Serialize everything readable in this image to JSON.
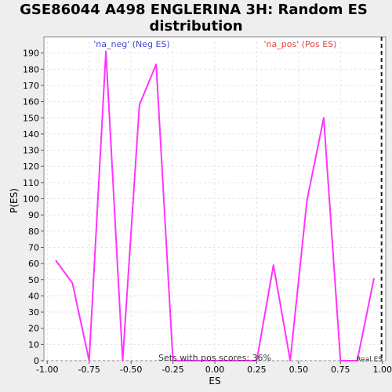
{
  "chart_data": {
    "type": "line",
    "title_line1": "GSE86044 A498 ENGLERINA 3H: Random ES",
    "title_line2": "distribution",
    "xlabel": "ES",
    "ylabel": "P(ES)",
    "xlim": [
      -1.02,
      1.02
    ],
    "ylim": [
      0,
      200
    ],
    "x_ticks": [
      -1.0,
      -0.75,
      -0.5,
      -0.25,
      0.0,
      0.25,
      0.5,
      0.75,
      1.0
    ],
    "x_tick_labels": [
      "-1.00",
      "-0.75",
      "-0.50",
      "-0.25",
      "0.00",
      "0.25",
      "0.50",
      "0.75",
      "1.00"
    ],
    "y_ticks": [
      0,
      10,
      20,
      30,
      40,
      50,
      60,
      70,
      80,
      90,
      100,
      110,
      120,
      130,
      140,
      150,
      160,
      170,
      180,
      190
    ],
    "grid": true,
    "series": [
      {
        "color": "#ff33ff",
        "x": [
          -0.95,
          -0.85,
          -0.75,
          -0.65,
          -0.55,
          -0.45,
          -0.35,
          -0.25,
          -0.15,
          -0.05,
          0.05,
          0.15,
          0.25,
          0.35,
          0.45,
          0.55,
          0.65,
          0.75,
          0.85,
          0.95
        ],
        "y": [
          62,
          48,
          0,
          191,
          0,
          158,
          183,
          0,
          0,
          0,
          0,
          0,
          0,
          59,
          0,
          99,
          150,
          0,
          0,
          51
        ]
      }
    ],
    "real_es": 0.995,
    "annotations": {
      "neg_label": "'na_neg' (Neg ES)",
      "neg_color": "#4444cc",
      "pos_label": "'na_pos' (Pos ES)",
      "pos_color": "#dd4444",
      "sets_text": "Sets with pos scores: 36%",
      "real_es_label": "Real ES"
    }
  }
}
